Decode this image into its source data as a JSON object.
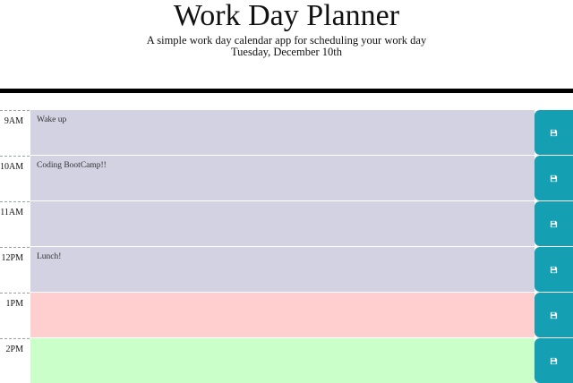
{
  "header": {
    "title": "Work Day Planner",
    "lead": "A simple work day calendar app for scheduling your work day",
    "current_day": "Tuesday, December 10th"
  },
  "colors": {
    "past": "#d3d2e2",
    "present": "#ffcfcf",
    "future": "#caffca",
    "save_button": "#149fb3"
  },
  "time_blocks": [
    {
      "hour": "9AM",
      "text": "Wake up",
      "state": "past",
      "save_icon": "floppy-disk-icon"
    },
    {
      "hour": "10AM",
      "text": "Coding BootCamp!!",
      "state": "past",
      "save_icon": "floppy-disk-icon"
    },
    {
      "hour": "11AM",
      "text": "",
      "state": "past",
      "save_icon": "floppy-disk-icon"
    },
    {
      "hour": "12PM",
      "text": "Lunch!",
      "state": "past",
      "save_icon": "floppy-disk-icon"
    },
    {
      "hour": "1PM",
      "text": "",
      "state": "present",
      "save_icon": "floppy-disk-icon"
    },
    {
      "hour": "2PM",
      "text": "",
      "state": "future",
      "save_icon": "floppy-disk-icon"
    }
  ]
}
